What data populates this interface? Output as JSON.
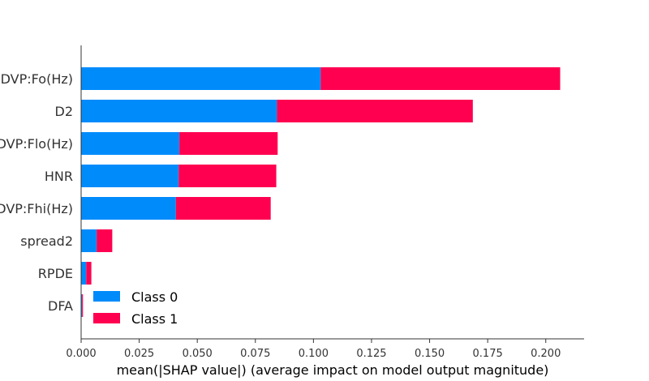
{
  "chart_data": {
    "type": "bar",
    "orientation": "horizontal",
    "stacked": true,
    "title": "",
    "xlabel": "mean(|SHAP value|) (average impact on model output magnitude)",
    "ylabel": "",
    "xlim": [
      0.0,
      0.2165
    ],
    "xticks": [
      "0.000",
      "0.025",
      "0.050",
      "0.075",
      "0.100",
      "0.125",
      "0.150",
      "0.175",
      "0.200"
    ],
    "categories": [
      "MDVP:Fo(Hz)",
      "D2",
      "MDVP:Flo(Hz)",
      "HNR",
      "MDVP:Fhi(Hz)",
      "spread2",
      "RPDE",
      "DFA"
    ],
    "series": [
      {
        "name": "Class 0",
        "color": "#008bfb",
        "values": [
          0.1031,
          0.0843,
          0.0423,
          0.042,
          0.0408,
          0.0067,
          0.0022,
          0.0004
        ]
      },
      {
        "name": "Class 1",
        "color": "#ff0051",
        "values": [
          0.1031,
          0.0843,
          0.0423,
          0.042,
          0.0408,
          0.0067,
          0.0022,
          0.0004
        ]
      }
    ],
    "grid": false,
    "legend_position": "bottom-left"
  }
}
